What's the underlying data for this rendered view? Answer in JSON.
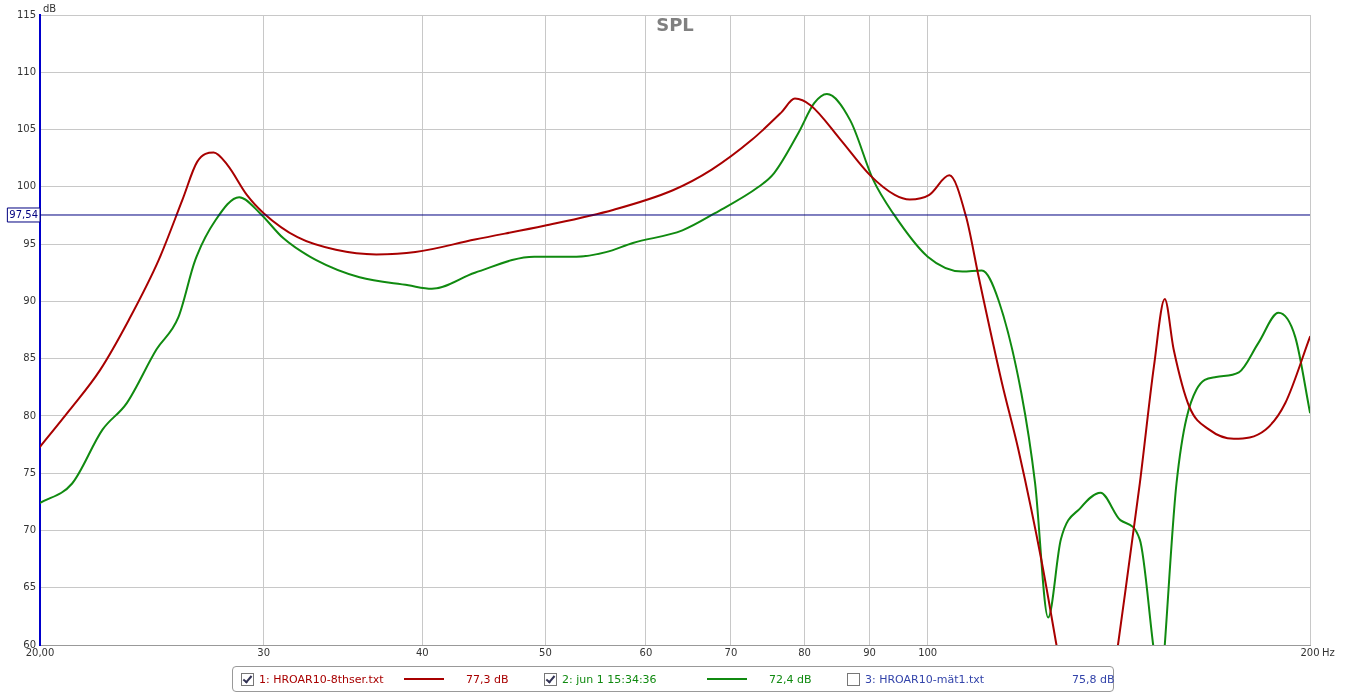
{
  "chart_data": {
    "type": "line",
    "title": "SPL",
    "xlabel": "Hz",
    "ylabel": "dB",
    "log": "x",
    "xlim": [
      20,
      200
    ],
    "xticks": [
      {
        "value": 20,
        "label": "20,00"
      },
      30,
      40,
      50,
      60,
      70,
      80,
      90,
      100,
      200
    ],
    "ylim": [
      60,
      115
    ],
    "yticks": [
      60,
      65,
      70,
      75,
      80,
      85,
      90,
      95,
      100,
      105,
      110,
      115
    ],
    "grid": true,
    "legend": "bottom",
    "marker": "none",
    "line_style": "solid",
    "ref_lines": [
      {
        "axis": "y",
        "value": 97.54,
        "label": "97,54",
        "color": "#000080"
      }
    ],
    "annotations": [
      "77,3 dB",
      "72,4 dB",
      "3: HROAR10-mät1.txt",
      "75,8 dB"
    ],
    "series": [
      {
        "name": "1: HROAR10-8thser.txt",
        "color": "#a80000",
        "x": [
          20,
          21.1,
          22.3,
          23.5,
          24.8,
          25.9,
          26.6,
          27.4,
          28.1,
          29.1,
          30,
          31.9,
          34.2,
          36.8,
          39.5,
          44,
          49.9,
          56.6,
          63,
          67.6,
          72.7,
          76.7,
          78.6,
          80.9,
          85.4,
          90.1,
          94.2,
          96.8,
          100.3,
          104,
          107.2,
          109.7,
          114.4,
          117.9,
          122.9,
          126.3,
          135,
          141.2,
          146.9,
          150.7,
          153.7,
          156.2,
          160.7,
          166.6,
          174.2,
          184.5,
          191.2,
          200
        ],
        "values": [
          77.3,
          80.5,
          84,
          88.4,
          93.6,
          98.9,
          102.2,
          103,
          101.9,
          99.3,
          97.7,
          95.6,
          94.5,
          94.1,
          94.3,
          95.4,
          96.6,
          98,
          99.7,
          101.5,
          104.1,
          106.5,
          107.7,
          107.1,
          104.1,
          101,
          99.3,
          98.9,
          99.3,
          101,
          97.4,
          92.1,
          82.9,
          77,
          67.4,
          60,
          null,
          60,
          74.1,
          84.3,
          90.2,
          85.8,
          80.8,
          78.8,
          78,
          78.8,
          81.1,
          86.9
        ]
      },
      {
        "name": "2: jun 1 15:34:36",
        "color": "#108a10",
        "x": [
          20,
          21.2,
          22.4,
          23.4,
          24.7,
          25.7,
          26.5,
          27.5,
          28.7,
          29.8,
          31.1,
          33,
          35.7,
          39,
          40.7,
          44,
          49,
          52.9,
          55.8,
          58.6,
          64.1,
          68,
          73.6,
          75.7,
          79.1,
          81.4,
          83.3,
          86.9,
          90.6,
          93.9,
          100,
          106.5,
          110.3,
          113.7,
          118.5,
          121.5,
          124.4,
          127.3,
          132,
          136.8,
          141.8,
          146.9,
          150.5,
          152,
          153.7,
          157,
          162.8,
          168.7,
          175.8,
          182.2,
          188.9,
          194.7,
          200
        ],
        "values": [
          72.4,
          74.1,
          78.8,
          81.1,
          85.8,
          88.6,
          93.6,
          97.1,
          99.1,
          97.7,
          95.5,
          93.6,
          92.1,
          91.4,
          91.1,
          92.5,
          93.9,
          93.9,
          94.3,
          95.1,
          96.2,
          97.7,
          100,
          101.2,
          104.7,
          107.3,
          108.1,
          105.8,
          100.6,
          97.7,
          93.9,
          92.6,
          92.7,
          90.1,
          82,
          74.1,
          62.4,
          69.2,
          72,
          73.3,
          70.9,
          69.2,
          60,
          null,
          60,
          74.1,
          82.3,
          83.4,
          83.8,
          86.4,
          89,
          86.9,
          80.3
        ]
      }
    ]
  }
}
